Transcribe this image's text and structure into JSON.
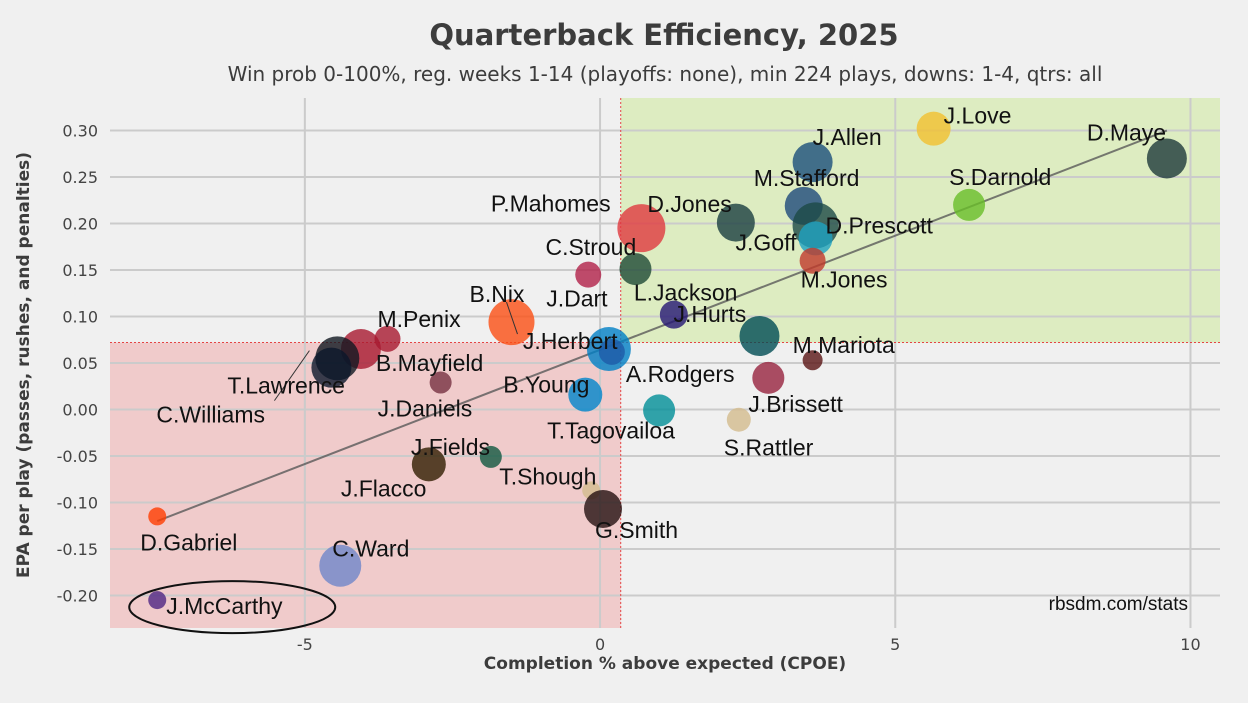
{
  "chart_data": {
    "type": "scatter",
    "title": "Quarterback Efficiency, 2025",
    "subtitle": "Win prob 0-100%, reg. weeks 1-14 (playoffs: none), min 224 plays, downs: 1-4, qtrs: all",
    "xlabel": "Completion % above expected (CPOE)",
    "ylabel": "EPA per play (passes, rushes, and penalties)",
    "credit": "rbsdm.com/stats",
    "xlim": [
      -8.3,
      10.5
    ],
    "ylim": [
      -0.235,
      0.335
    ],
    "xticks": [
      -5,
      0,
      5,
      10
    ],
    "yticks": [
      -0.2,
      -0.15,
      -0.1,
      -0.05,
      0.0,
      0.05,
      0.1,
      0.15,
      0.2,
      0.25,
      0.3
    ],
    "mean_cpoe": 0.35,
    "mean_epa": 0.072,
    "trendline": {
      "x": [
        -7.5,
        9.6
      ],
      "y": [
        -0.12,
        0.3
      ]
    },
    "colors": {
      "good_quadrant": "#d9ebb8",
      "bad_quadrant": "#f0c4c4",
      "mean_line": "#e44444",
      "trend": "#5a5a5a"
    },
    "highlight": "J.McCarthy",
    "points": [
      {
        "name": "J.Love",
        "x": 5.65,
        "y": 0.302,
        "size": 17,
        "color": "#f2c12e"
      },
      {
        "name": "D.Maye",
        "x": 9.6,
        "y": 0.27,
        "size": 20,
        "color": "#1e3a3a"
      },
      {
        "name": "J.Allen",
        "x": 3.6,
        "y": 0.266,
        "size": 20,
        "color": "#1a4f7a"
      },
      {
        "name": "S.Darnold",
        "x": 6.25,
        "y": 0.22,
        "size": 16,
        "color": "#69be28"
      },
      {
        "name": "M.Stafford",
        "x": 3.45,
        "y": 0.219,
        "size": 19,
        "color": "#1e4a7a"
      },
      {
        "name": "D.Jones",
        "x": 0.7,
        "y": 0.195,
        "size": 24,
        "color": "#e03a3e"
      },
      {
        "name": "D.Prescott",
        "x": 3.65,
        "y": 0.198,
        "size": 23,
        "color": "#1d4a46"
      },
      {
        "name": "J.Goff",
        "x": 3.65,
        "y": 0.184,
        "size": 17,
        "color": "#1ea1c0"
      },
      {
        "name": "P.Mahomes",
        "x": 2.3,
        "y": 0.201,
        "size": 19,
        "color": "#1a3f40"
      },
      {
        "name": "M.Jones",
        "x": 3.6,
        "y": 0.16,
        "size": 13,
        "color": "#c0392b"
      },
      {
        "name": "C.Stroud",
        "x": 0.6,
        "y": 0.151,
        "size": 16,
        "color": "#1e4a34"
      },
      {
        "name": "J.Dart",
        "x": -0.2,
        "y": 0.145,
        "size": 13,
        "color": "#b22148"
      },
      {
        "name": "L.Jackson",
        "x": 1.25,
        "y": 0.102,
        "size": 14,
        "color": "#241773"
      },
      {
        "name": "J.Hurts",
        "x": 2.7,
        "y": 0.079,
        "size": 20,
        "color": "#004c54"
      },
      {
        "name": "B.Nix",
        "x": -1.5,
        "y": 0.094,
        "size": 23,
        "color": "#fb4f14"
      },
      {
        "name": "J.Herbert",
        "x": 0.15,
        "y": 0.065,
        "size": 22,
        "color": "#0080c6"
      },
      {
        "name": "M.Penix",
        "x": -3.6,
        "y": 0.076,
        "size": 13,
        "color": "#a71930"
      },
      {
        "name": "M.Mariota",
        "x": 3.6,
        "y": 0.053,
        "size": 10,
        "color": "#5a1414"
      },
      {
        "name": "B.Mayfield",
        "x": -4.05,
        "y": 0.065,
        "size": 20,
        "color": "#a71930"
      },
      {
        "name": "T.Lawrence",
        "x": -4.45,
        "y": 0.055,
        "size": 22,
        "color": "#101820"
      },
      {
        "name": "C.Williams",
        "x": -4.55,
        "y": 0.045,
        "size": 20,
        "color": "#0b162a"
      },
      {
        "name": "A.Rodgers",
        "x": 0.2,
        "y": 0.062,
        "size": 13,
        "color": "#1e5aa8"
      },
      {
        "name": "J.Brissett",
        "x": 2.85,
        "y": 0.034,
        "size": 16,
        "color": "#97233f"
      },
      {
        "name": "J.Daniels",
        "x": -2.7,
        "y": 0.029,
        "size": 11,
        "color": "#773141"
      },
      {
        "name": "B.Young",
        "x": -0.25,
        "y": 0.016,
        "size": 17,
        "color": "#0085ca"
      },
      {
        "name": "T.Tagovailoa",
        "x": 1.0,
        "y": -0.001,
        "size": 16,
        "color": "#008e97"
      },
      {
        "name": "S.Rattler",
        "x": 2.35,
        "y": -0.011,
        "size": 12,
        "color": "#d3bc8d"
      },
      {
        "name": "J.Fields",
        "x": -1.85,
        "y": -0.051,
        "size": 11,
        "color": "#125740"
      },
      {
        "name": "J.Flacco",
        "x": -2.9,
        "y": -0.059,
        "size": 17,
        "color": "#311d00"
      },
      {
        "name": "T.Shough",
        "x": -0.15,
        "y": -0.087,
        "size": 9,
        "color": "#d3bc8d"
      },
      {
        "name": "G.Smith",
        "x": 0.05,
        "y": -0.107,
        "size": 19,
        "color": "#241010"
      },
      {
        "name": "D.Gabriel",
        "x": -7.5,
        "y": -0.115,
        "size": 9,
        "color": "#ff3c00"
      },
      {
        "name": "C.Ward",
        "x": -4.4,
        "y": -0.168,
        "size": 21,
        "color": "#6f86c9"
      },
      {
        "name": "J.McCarthy",
        "x": -7.5,
        "y": -0.205,
        "size": 9,
        "color": "#4f2683"
      }
    ]
  }
}
